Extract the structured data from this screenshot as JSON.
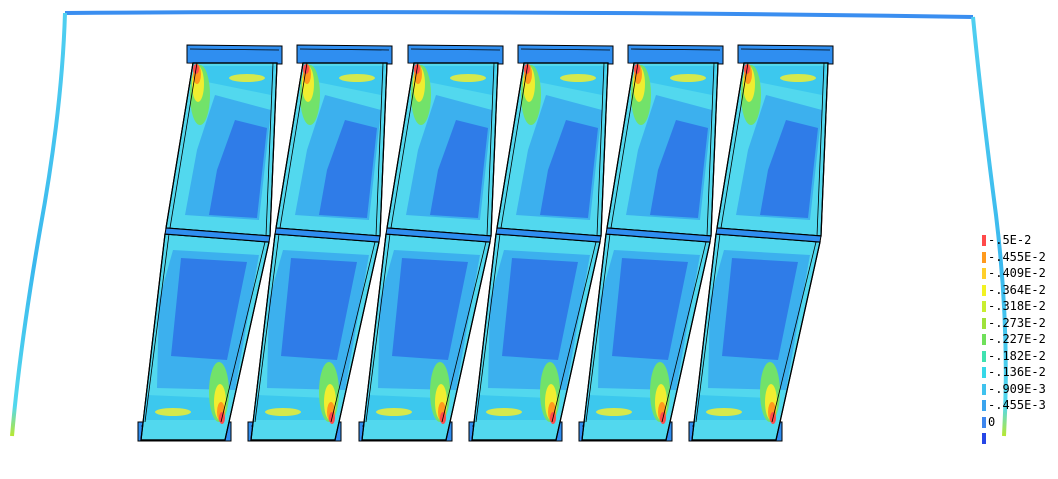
{
  "legend": {
    "entries": [
      {
        "label": "-.5E-2",
        "color": "#ff4a4a"
      },
      {
        "label": "-.455E-2",
        "color": "#ff9a1e"
      },
      {
        "label": "-.409E-2",
        "color": "#ffcf2a"
      },
      {
        "label": "-.364E-2",
        "color": "#f2f222"
      },
      {
        "label": "-.318E-2",
        "color": "#c9ee30"
      },
      {
        "label": "-.273E-2",
        "color": "#9fe23a"
      },
      {
        "label": "-.227E-2",
        "color": "#6fe05a"
      },
      {
        "label": "-.182E-2",
        "color": "#3fe2b0"
      },
      {
        "label": "-.136E-2",
        "color": "#36d8e8"
      },
      {
        "label": "-.909E-3",
        "color": "#3fc2ee"
      },
      {
        "label": "-.455E-3",
        "color": "#3aa4ee"
      },
      {
        "label": "0",
        "color": "#3d86ee"
      },
      {
        "label": "",
        "color": "#2646e6"
      }
    ]
  },
  "palette": {
    "frame": "#3a8ef0",
    "base": "#2f8ef0",
    "cyan": "#3cc8ee",
    "light_cyan": "#52d8ee",
    "deep": "#2f7ce8",
    "mid": "#3cb0ee",
    "green": "#72e26a",
    "yellow": "#f0ee30",
    "orange": "#ff9a1e",
    "red": "#ff4a4a"
  },
  "panels": {
    "count": 6
  }
}
